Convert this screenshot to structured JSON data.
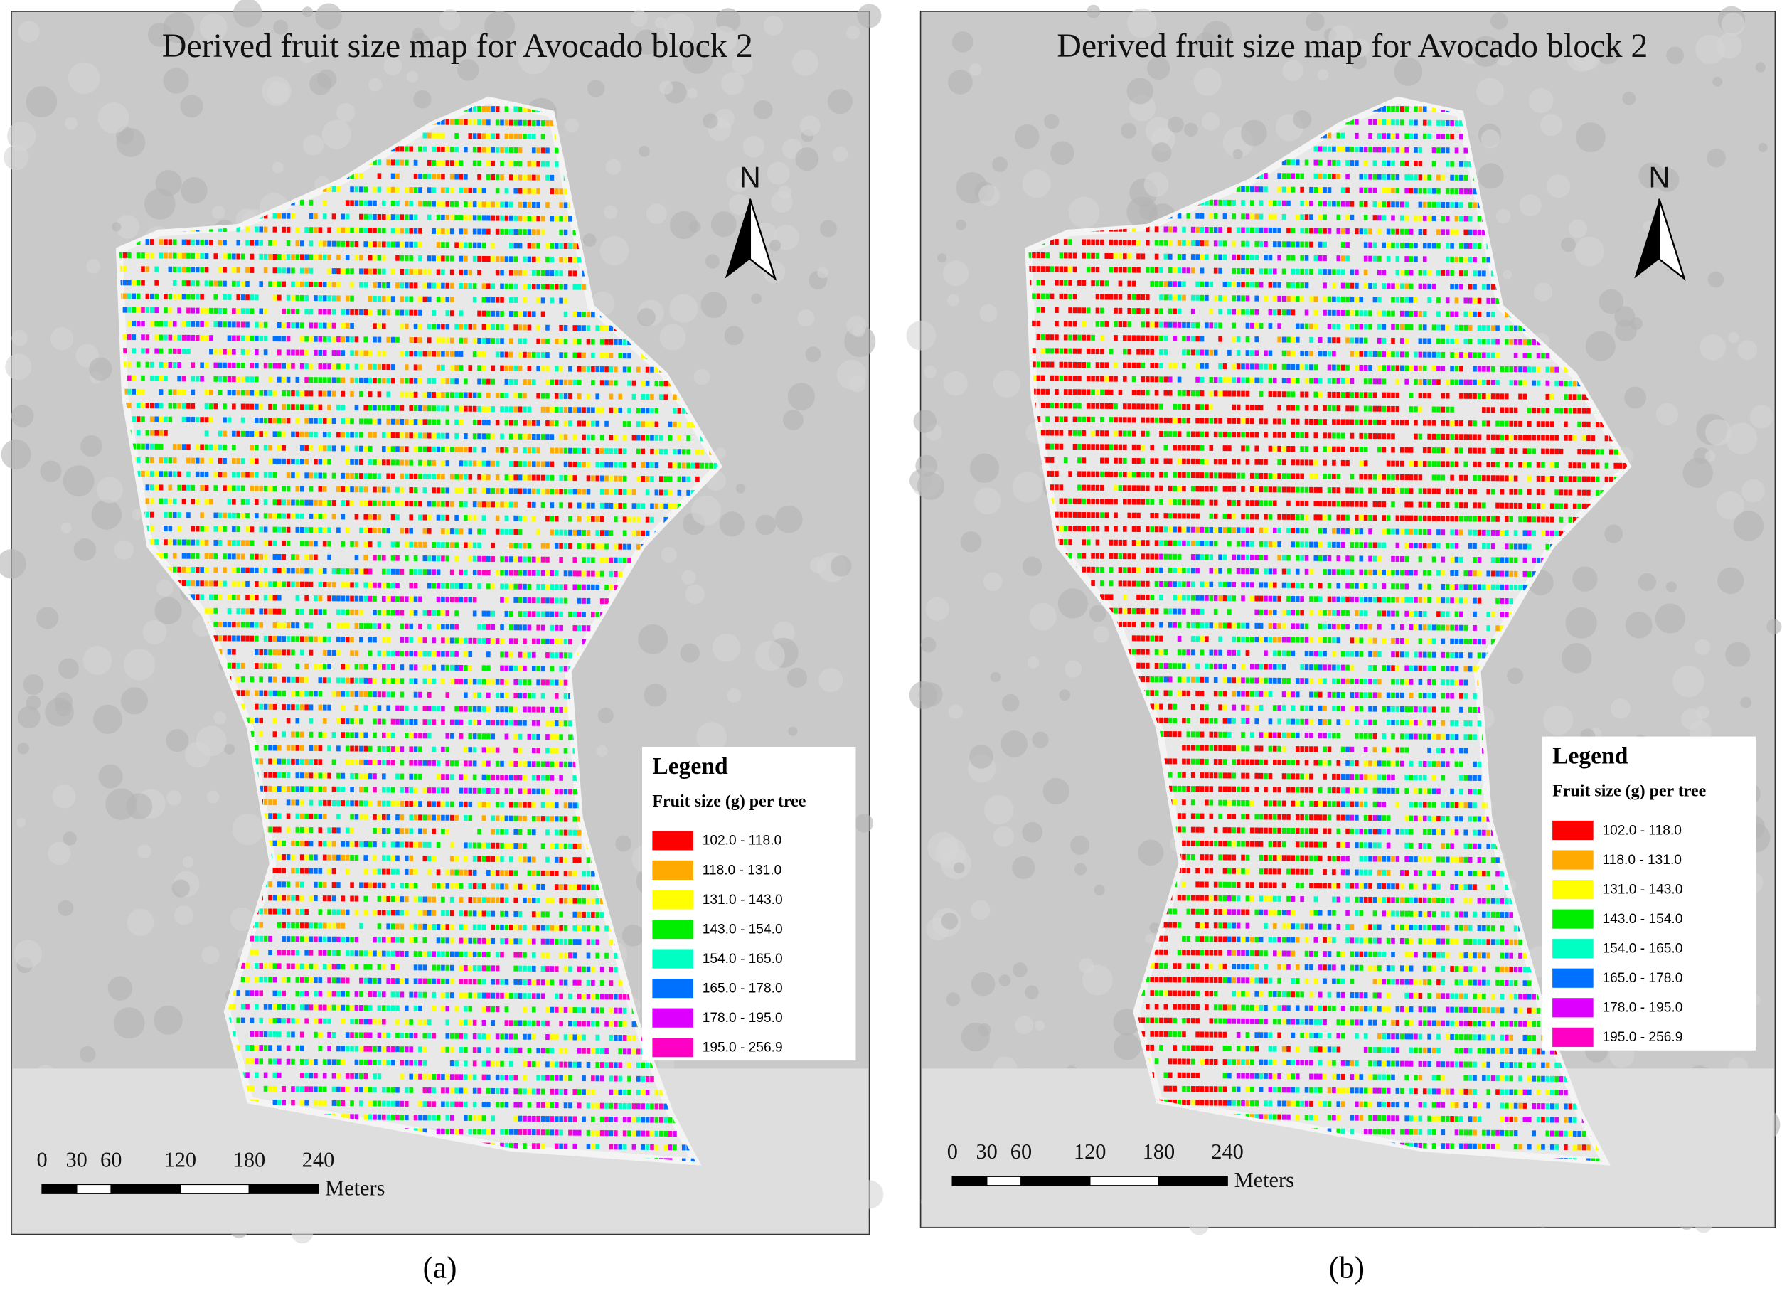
{
  "panels": [
    {
      "title": "Derived fruit size map for Avocado block 2",
      "north": "N",
      "legend": {
        "title": "Legend",
        "subtitle": "Fruit size (g) per tree",
        "classes": [
          {
            "label": "102.0 - 118.0",
            "color": "#ff0000"
          },
          {
            "label": "118.0 - 131.0",
            "color": "#ffaa00"
          },
          {
            "label": "131.0 - 143.0",
            "color": "#ffff00"
          },
          {
            "label": "143.0 - 154.0",
            "color": "#00ee00"
          },
          {
            "label": "154.0 - 165.0",
            "color": "#00ffc3"
          },
          {
            "label": "165.0 - 178.0",
            "color": "#0070ff"
          },
          {
            "label": "178.0 - 195.0",
            "color": "#dd00ff"
          },
          {
            "label": "195.0 - 256.9",
            "color": "#ff00c5"
          }
        ]
      },
      "scale": {
        "ticks": [
          0,
          30,
          60,
          120,
          180,
          240
        ],
        "unit": "Meters"
      },
      "label": "(a)"
    },
    {
      "title": "Derived fruit size map for Avocado block 2",
      "north": "N",
      "legend": {
        "title": "Legend",
        "subtitle": "Fruit size (g) per tree",
        "classes": [
          {
            "label": "102.0 - 118.0",
            "color": "#ff0000"
          },
          {
            "label": "118.0 - 131.0",
            "color": "#ffaa00"
          },
          {
            "label": "131.0 - 143.0",
            "color": "#ffff00"
          },
          {
            "label": "143.0 - 154.0",
            "color": "#00ee00"
          },
          {
            "label": "154.0 - 165.0",
            "color": "#00ffc3"
          },
          {
            "label": "165.0 - 178.0",
            "color": "#0070ff"
          },
          {
            "label": "178.0 - 195.0",
            "color": "#dd00ff"
          },
          {
            "label": "195.0 - 256.9",
            "color": "#ff00c5"
          }
        ]
      },
      "scale": {
        "ticks": [
          0,
          30,
          60,
          120,
          180,
          240
        ],
        "unit": "Meters"
      },
      "label": "(b)"
    }
  ]
}
